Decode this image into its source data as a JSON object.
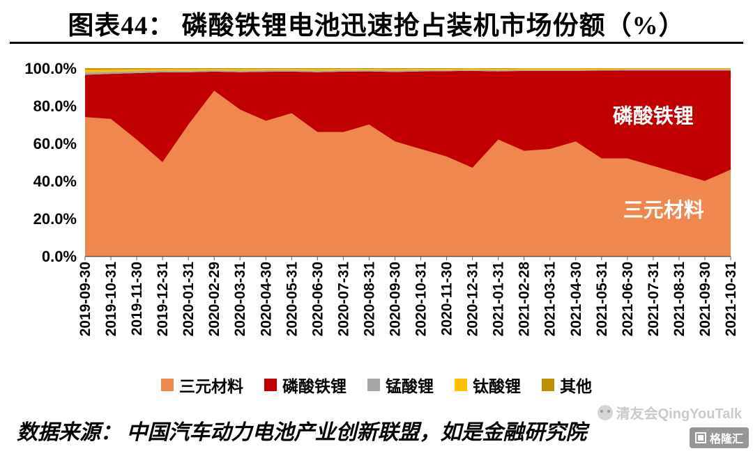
{
  "header": {
    "title": "图表44： 磷酸铁锂电池迅速抢占装机市场份额（%）"
  },
  "chart_data": {
    "type": "area",
    "stacked": true,
    "percent_stacked": true,
    "grid": false,
    "legend_position": "bottom",
    "ylim": [
      0,
      100
    ],
    "x": [
      "2019-09-30",
      "2019-10-31",
      "2019-11-30",
      "2019-12-31",
      "2020-01-31",
      "2020-02-29",
      "2020-03-31",
      "2020-04-30",
      "2020-05-31",
      "2020-06-30",
      "2020-07-31",
      "2020-08-31",
      "2020-09-30",
      "2020-10-31",
      "2020-11-30",
      "2020-12-31",
      "2021-01-31",
      "2021-02-28",
      "2021-03-31",
      "2021-04-30",
      "2021-05-31",
      "2021-06-30",
      "2021-07-31",
      "2021-08-31",
      "2021-09-30",
      "2021-10-31"
    ],
    "series": [
      {
        "name": "三元材料",
        "color": "#F0874E",
        "values": [
          74,
          73,
          62,
          50,
          70,
          88,
          78,
          72,
          76,
          66,
          66,
          70,
          61,
          57,
          53,
          47,
          62,
          56,
          57,
          61,
          52,
          52,
          48,
          44,
          40,
          46
        ]
      },
      {
        "name": "磷酸铁锂",
        "color": "#C00000",
        "values": [
          22.5,
          24.0,
          35.4,
          47.8,
          27.8,
          10.2,
          19.9,
          26.1,
          22.2,
          31.9,
          32.2,
          28.3,
          37.0,
          41.3,
          45.4,
          51.6,
          36.3,
          42.6,
          41.6,
          37.6,
          46.7,
          46.8,
          50.8,
          54.8,
          58.8,
          52.8
        ]
      },
      {
        "name": "锰酸锂",
        "color": "#A6A6A6",
        "values": [
          1.2,
          1.1,
          1.0,
          0.9,
          0.8,
          0.7,
          0.8,
          0.8,
          0.7,
          0.8,
          0.7,
          0.7,
          0.8,
          0.7,
          0.6,
          0.6,
          0.7,
          0.6,
          0.6,
          0.6,
          0.5,
          0.5,
          0.5,
          0.5,
          0.5,
          0.5
        ]
      },
      {
        "name": "钛酸锂",
        "color": "#FFC000",
        "values": [
          1.5,
          1.2,
          1.0,
          0.8,
          0.9,
          0.7,
          0.8,
          0.7,
          0.7,
          0.8,
          0.7,
          0.6,
          0.7,
          0.6,
          0.6,
          0.5,
          0.6,
          0.5,
          0.5,
          0.5,
          0.5,
          0.4,
          0.4,
          0.4,
          0.4,
          0.4
        ]
      },
      {
        "name": "其他",
        "color": "#BF8F00",
        "values": [
          0.8,
          0.7,
          0.6,
          0.5,
          0.5,
          0.4,
          0.5,
          0.4,
          0.4,
          0.5,
          0.4,
          0.4,
          0.5,
          0.4,
          0.4,
          0.3,
          0.4,
          0.3,
          0.3,
          0.3,
          0.3,
          0.3,
          0.3,
          0.3,
          0.3,
          0.3
        ]
      }
    ],
    "yticks": [
      {
        "label": "100.0%",
        "value": 100
      },
      {
        "label": "80.0%",
        "value": 80
      },
      {
        "label": "60.0%",
        "value": 60
      },
      {
        "label": "40.0%",
        "value": 40
      },
      {
        "label": "20.0%",
        "value": 20
      },
      {
        "label": "0.0%",
        "value": 0
      }
    ],
    "annotations": [
      {
        "text": "磷酸铁锂",
        "xi": 22.0,
        "y": 71,
        "color": "#FFFFFF"
      },
      {
        "text": "三元材料",
        "xi": 22.4,
        "y": 21,
        "color": "#FFFFFF"
      }
    ]
  },
  "footer": {
    "source": "数据来源： 中国汽车动力电池产业创新联盟，如是金融研究院"
  },
  "watermarks": {
    "qingyoutalk": "清友会QingYouTalk",
    "gelonghui": "格隆汇"
  }
}
